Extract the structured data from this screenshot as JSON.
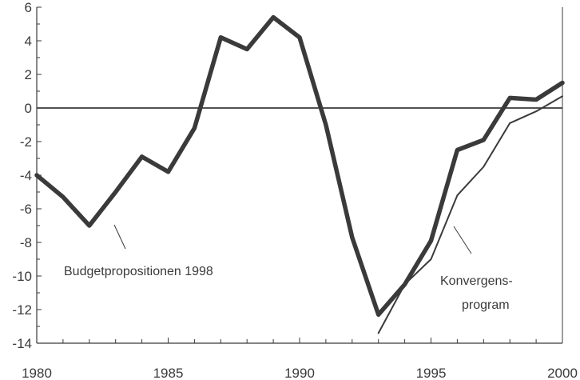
{
  "chart_data": {
    "type": "line",
    "title": "",
    "xlabel": "",
    "ylabel": "",
    "xlim": [
      1980,
      2000
    ],
    "ylim": [
      -14,
      6
    ],
    "x_ticks": [
      1980,
      1985,
      1990,
      1995,
      2000
    ],
    "y_ticks": [
      6,
      4,
      2,
      0,
      -2,
      -4,
      -6,
      -8,
      -10,
      -12,
      -14
    ],
    "zero_line": true,
    "grid": false,
    "legend": "none",
    "series": [
      {
        "name": "Budgetpropositionen 1998",
        "color": "#3a3a3a",
        "x": [
          1980,
          1981,
          1982,
          1983,
          1984,
          1985,
          1986,
          1987,
          1988,
          1989,
          1990,
          1991,
          1992,
          1993,
          1994,
          1995,
          1996,
          1997,
          1998,
          1999,
          2000
        ],
        "values": [
          -4.0,
          -5.3,
          -7.0,
          -5.0,
          -2.9,
          -3.8,
          -1.2,
          4.2,
          3.5,
          5.4,
          4.2,
          -1.0,
          -7.7,
          -12.3,
          -10.5,
          -7.9,
          -2.5,
          -1.9,
          0.6,
          0.5,
          1.5
        ]
      },
      {
        "name": "Konvergens-program",
        "color": "#3a3a3a",
        "x": [
          1993,
          1994,
          1995,
          1996,
          1997,
          1998,
          1999,
          2000
        ],
        "values": [
          -13.4,
          -10.5,
          -9.0,
          -5.2,
          -3.5,
          -0.9,
          -0.2,
          0.7
        ]
      }
    ],
    "annotations": [
      {
        "text": "Budgetpropositionen 1998"
      },
      {
        "text": "Konvergens-"
      },
      {
        "text": "program"
      }
    ]
  }
}
